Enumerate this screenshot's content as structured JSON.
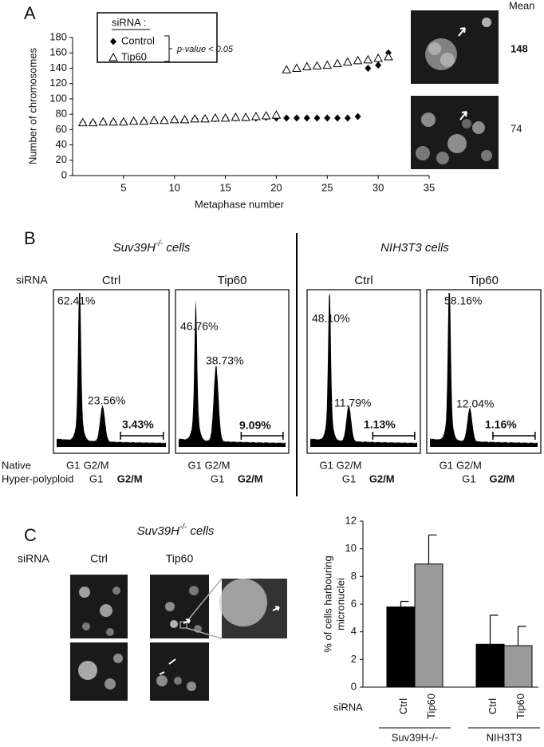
{
  "panel_labels": {
    "a": "A",
    "b": "B",
    "c": "C"
  },
  "chart_data": [
    {
      "type": "scatter",
      "x_label": "Metaphase number",
      "y_label": "Number of chromosomes",
      "xlim": [
        0,
        35
      ],
      "xticks": [
        5,
        10,
        15,
        20,
        25,
        30,
        35
      ],
      "ylim": [
        0,
        180
      ],
      "yticks": [
        0,
        20,
        40,
        60,
        80,
        100,
        120,
        140,
        160,
        180
      ],
      "legend_title": "siRNA :",
      "annotation": "p-value < 0.05",
      "series": [
        {
          "name": "Control",
          "marker": "diamond",
          "color": "#000000",
          "x": [
            1,
            2,
            3,
            4,
            5,
            6,
            7,
            8,
            9,
            10,
            11,
            12,
            13,
            14,
            15,
            16,
            17,
            18,
            19,
            20,
            21,
            22,
            23,
            24,
            25,
            26,
            27,
            28,
            29,
            30,
            31
          ],
          "values": [
            69,
            69,
            70,
            70,
            70,
            71,
            71,
            72,
            72,
            73,
            73,
            74,
            74,
            74,
            75,
            75,
            75,
            75,
            76,
            75,
            75,
            75,
            75,
            75,
            75,
            75,
            75,
            77,
            140,
            144,
            160
          ]
        },
        {
          "name": "Tip60",
          "marker": "triangle",
          "color": "#000000",
          "x": [
            1,
            2,
            3,
            4,
            5,
            6,
            7,
            8,
            9,
            10,
            11,
            12,
            13,
            14,
            15,
            16,
            17,
            18,
            19,
            20,
            21,
            22,
            23,
            24,
            25,
            26,
            27,
            28,
            29,
            30,
            31
          ],
          "values": [
            69,
            69,
            70,
            70,
            70,
            71,
            71,
            72,
            72,
            73,
            73,
            74,
            74,
            75,
            75,
            76,
            76,
            77,
            78,
            79,
            138,
            140,
            142,
            143,
            144,
            146,
            148,
            150,
            151,
            153,
            155
          ]
        }
      ]
    },
    {
      "type": "bar",
      "x_label": "siRNA",
      "y_label": [
        "% of cells harbouring",
        "micronuclei"
      ],
      "categories": [
        "Suv39H-/-",
        "NIH3T3"
      ],
      "ylim": [
        0,
        12
      ],
      "yticks": [
        0,
        2,
        4,
        6,
        8,
        10,
        12
      ],
      "series": [
        {
          "name": "Ctrl",
          "color": "#000000",
          "values": [
            5.8,
            3.1
          ],
          "errors": [
            0.4,
            2.1
          ]
        },
        {
          "name": "Tip60",
          "color": "#9a9a9a",
          "values": [
            8.9,
            3.0
          ],
          "errors": [
            2.1,
            1.4
          ]
        }
      ]
    }
  ],
  "micrographs_a": {
    "header": "Mean",
    "means": [
      148,
      74
    ]
  },
  "flow": {
    "title_left": {
      "name": "Suv39H",
      "sup": "-/-",
      "rest": "cells"
    },
    "title_right": "NIH3T3 cells",
    "row_label": "siRNA",
    "native": "Native",
    "hyper": "Hyper-polyploid",
    "plots": [
      {
        "header": "Ctrl",
        "g1_pct": "62.41%",
        "g2m_pct": "23.56%",
        "poly_pct": "3.43%",
        "native_g1": "G1",
        "native_g2m": "G2/M",
        "hyper_g1": "G1",
        "hyper_g2m": "G2/M"
      },
      {
        "header": "Tip60",
        "g1_pct": "46.76%",
        "g2m_pct": "38.73%",
        "poly_pct": "9.09%",
        "native_g1": "G1",
        "native_g2m": "G2/M",
        "hyper_g1": "G1",
        "hyper_g2m": "G2/M"
      },
      {
        "header": "Ctrl",
        "g1_pct": "48.10%",
        "g2m_pct": "11.79%",
        "poly_pct": "1.13%",
        "native_g1": "G1",
        "native_g2m": "G2/M",
        "hyper_g1": "G1",
        "hyper_g2m": "G2/M"
      },
      {
        "header": "Tip60",
        "g1_pct": "58.16%",
        "g2m_pct": "12.04%",
        "poly_pct": "1.16%",
        "native_g1": "G1",
        "native_g2m": "G2/M",
        "hyper_g1": "G1",
        "hyper_g2m": "G2/M"
      }
    ]
  },
  "panel_c": {
    "title": {
      "name": "Suv39H",
      "sup": "-/-",
      "rest": "cells"
    },
    "row_label": "siRNA",
    "ctrl": "Ctrl",
    "tip60": "Tip60"
  }
}
